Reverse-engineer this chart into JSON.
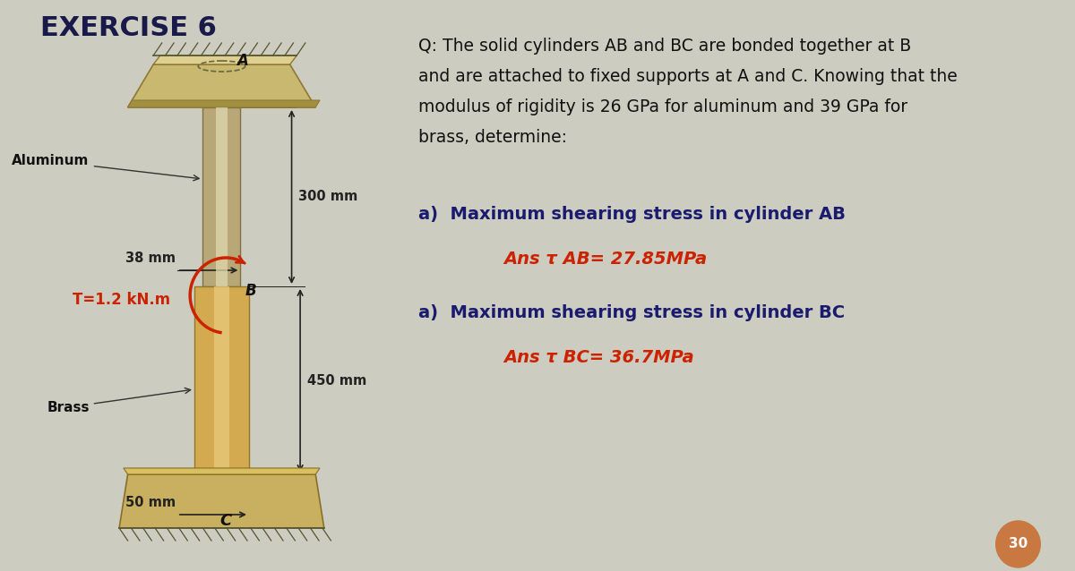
{
  "title": "EXERCISE 6",
  "bg_color": "#ccccc0",
  "title_color": "#1a1a4a",
  "title_fontsize": 22,
  "q_line1": "Q: The solid cylinders AB and BC are bonded together at B",
  "q_line2": "and are attached to fixed supports at A and C. Knowing that the",
  "q_line3": "modulus of rigidity is 26 GPa for aluminum and 39 GPa for",
  "q_line4": "brass, determine:",
  "q_fontsize": 13.5,
  "part_a_text": "a)  Maximum shearing stress in cylinder AB",
  "part_a_ans": "Ans τ AB= 27.85MPa",
  "part_b_text": "a)  Maximum shearing stress in cylinder BC",
  "part_b_ans": "Ans τ BC= 36.7MPa",
  "ans_color": "#cc2200",
  "part_color": "#1a1a6e",
  "part_fontsize": 14,
  "ans_fontsize": 14,
  "label_aluminum": "Aluminum",
  "label_brass": "Brass",
  "label_T": "T=1.2 kN.m",
  "label_300mm": "300 mm",
  "label_38mm": "38 mm",
  "label_450mm": "450 mm",
  "label_50mm": "50 mm",
  "label_A": "A",
  "label_B": "B",
  "label_C": "C",
  "label_30": "30",
  "alum_cyl_color": "#b8a878",
  "alum_cyl_highlight": "#e0d8b0",
  "alum_plate_color": "#c8b870",
  "alum_plate_highlight": "#ddd090",
  "brass_color": "#d4aa50",
  "brass_highlight": "#e8cc80",
  "bot_plate_color": "#c8b060",
  "dim_color": "#222222",
  "torque_arrow_color": "#cc2200",
  "label_color": "#111111",
  "circle_color": "#c87840"
}
